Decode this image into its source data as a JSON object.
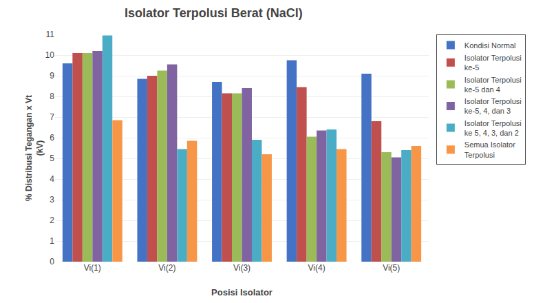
{
  "chart_data": {
    "type": "bar",
    "title": "Isolator Terpolusi Berat (NaCl)",
    "x_label": "Posisi Isolator",
    "y_label": "% Distribusi Tegangan x Vt\n(kV)",
    "categories": [
      "Vi(1)",
      "Vi(2)",
      "Vi(3)",
      "Vi(4)",
      "Vi(5)"
    ],
    "series": [
      {
        "name": "Kondisi Normal",
        "color": "#4472C4",
        "values": [
          9.6,
          8.85,
          8.7,
          9.75,
          9.1
        ]
      },
      {
        "name": "Isolator Terpolusi\nke-5",
        "color": "#C0504D",
        "values": [
          10.1,
          9.0,
          8.15,
          8.45,
          6.8
        ]
      },
      {
        "name": "Isolator Terpolusi\nke-5 dan 4",
        "color": "#9BBB59",
        "values": [
          10.1,
          9.25,
          8.15,
          6.05,
          5.3
        ]
      },
      {
        "name": "Isolator Terpolusi\nke-5, 4, dan 3",
        "color": "#8064A2",
        "values": [
          10.2,
          9.55,
          8.4,
          6.35,
          5.05
        ]
      },
      {
        "name": "Isolator Terpolusi\nke 5, 4, 3, dan 2",
        "color": "#4BACC6",
        "values": [
          10.95,
          5.45,
          5.9,
          6.4,
          5.4
        ]
      },
      {
        "name": "Semua Isolator\nTerpolusi",
        "color": "#F79646",
        "values": [
          6.85,
          5.85,
          5.2,
          5.45,
          5.6
        ]
      }
    ],
    "ylim": [
      0,
      11
    ],
    "yticks": [
      0,
      1,
      2,
      3,
      4,
      5,
      6,
      7,
      8,
      9,
      10,
      11
    ],
    "grid": true,
    "legend": "right"
  }
}
